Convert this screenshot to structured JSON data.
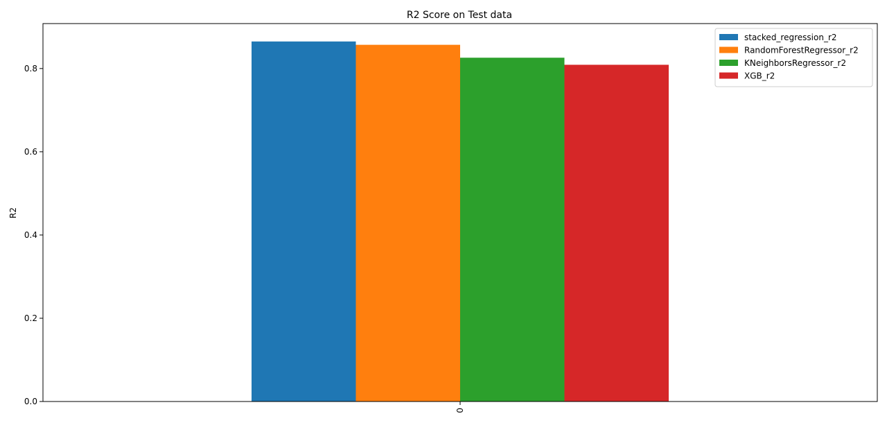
{
  "chart_data": {
    "type": "bar",
    "title": "R2  Score on Test data",
    "xlabel": "",
    "ylabel": "R2",
    "categories": [
      "0"
    ],
    "ylim": [
      0,
      0.908
    ],
    "yticks": [
      0.0,
      0.2,
      0.4,
      0.6,
      0.8
    ],
    "ytick_labels": [
      "0.0",
      "0.2",
      "0.4",
      "0.6",
      "0.8"
    ],
    "grid": false,
    "legend_position": "top-right",
    "series": [
      {
        "name": "stacked_regression_r2",
        "values": [
          0.865
        ],
        "color": "#1f77b4"
      },
      {
        "name": "RandomForestRegressor_r2",
        "values": [
          0.857
        ],
        "color": "#ff7f0e"
      },
      {
        "name": "KNeighborsRegressor_r2",
        "values": [
          0.826
        ],
        "color": "#2ca02c"
      },
      {
        "name": "XGB_r2",
        "values": [
          0.809
        ],
        "color": "#d62728"
      }
    ]
  }
}
